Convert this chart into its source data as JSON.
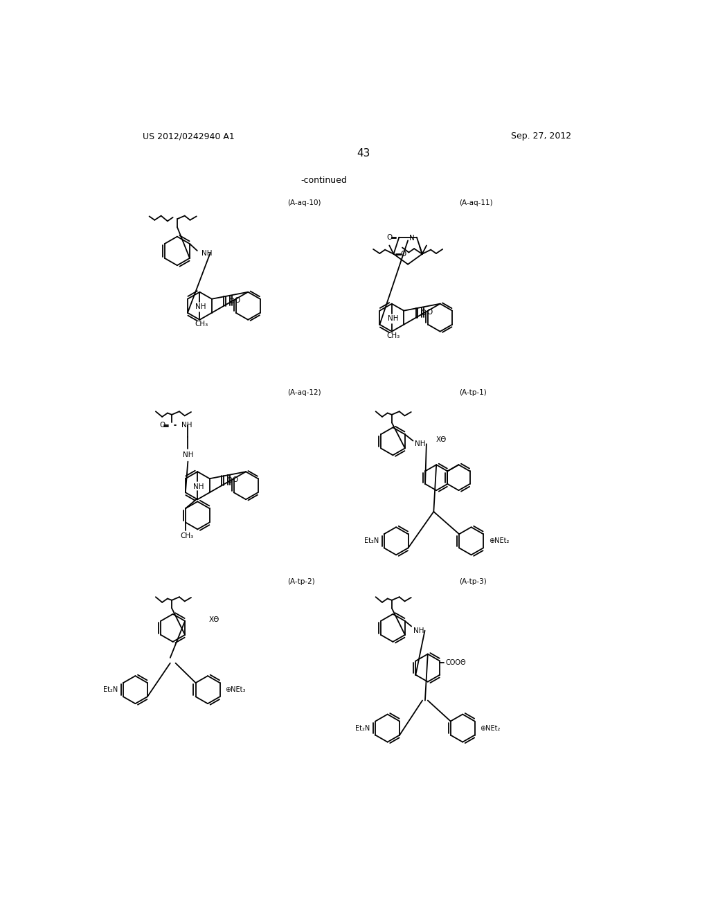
{
  "background_color": "#ffffff",
  "page_number": "43",
  "patent_number": "US 2012/0242940 A1",
  "patent_date": "Sep. 27, 2012",
  "continued_label": "-continued",
  "labels": {
    "aq10": "(A-aq-10)",
    "aq11": "(A-aq-11)",
    "aq12": "(A-aq-12)",
    "tp1": "(A-tp-1)",
    "tp2": "(A-tp-2)",
    "tp3": "(A-tp-3)"
  }
}
